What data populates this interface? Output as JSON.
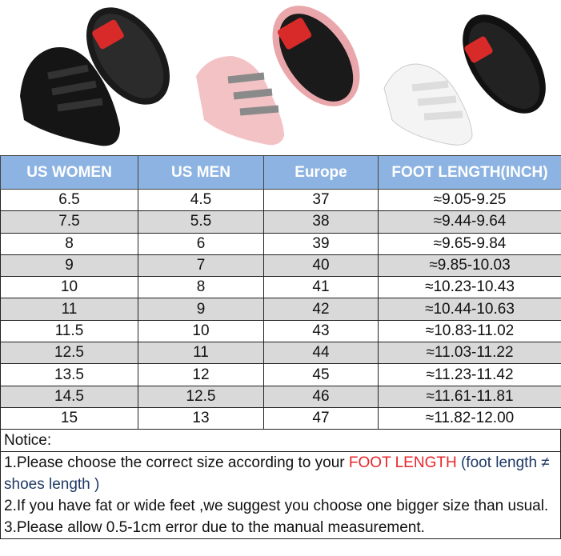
{
  "colors": {
    "header_bg": "#8db3e2",
    "alt_row": "#d9d9d9",
    "highlight": "#e8262a",
    "note": "#1f3864"
  },
  "products": [
    {
      "name": "black-shoe"
    },
    {
      "name": "pink-shoe"
    },
    {
      "name": "white-shoe"
    }
  ],
  "table": {
    "headers": [
      "US WOMEN",
      "US MEN",
      "Europe",
      "FOOT LENGTH(INCH)"
    ],
    "rows": [
      [
        "6.5",
        "4.5",
        "37",
        "≈9.05-9.25"
      ],
      [
        "7.5",
        "5.5",
        "38",
        "≈9.44-9.64"
      ],
      [
        "8",
        "6",
        "39",
        "≈9.65-9.84"
      ],
      [
        "9",
        "7",
        "40",
        "≈9.85-10.03"
      ],
      [
        "10",
        "8",
        "41",
        "≈10.23-10.43"
      ],
      [
        "11",
        "9",
        "42",
        "≈10.44-10.63"
      ],
      [
        "11.5",
        "10",
        "43",
        "≈10.83-11.02"
      ],
      [
        "12.5",
        "11",
        "44",
        "≈11.03-11.22"
      ],
      [
        "13.5",
        "12",
        "45",
        "≈11.23-11.42"
      ],
      [
        "14.5",
        "12.5",
        "46",
        "≈11.61-11.81"
      ],
      [
        "15",
        "13",
        "47",
        "≈11.82-12.00"
      ]
    ]
  },
  "notice": {
    "title": "Notice:",
    "item1_a": "1.Please choose the correct size according to your ",
    "item1_highlight": "FOOT LENGTH",
    "item1_b": " (foot length ≠ shoes length )",
    "item2": "2.If you have fat or wide feet ,we suggest you choose one bigger size than usual.",
    "item3": "3.Please allow 0.5-1cm error due to the manual measurement."
  }
}
